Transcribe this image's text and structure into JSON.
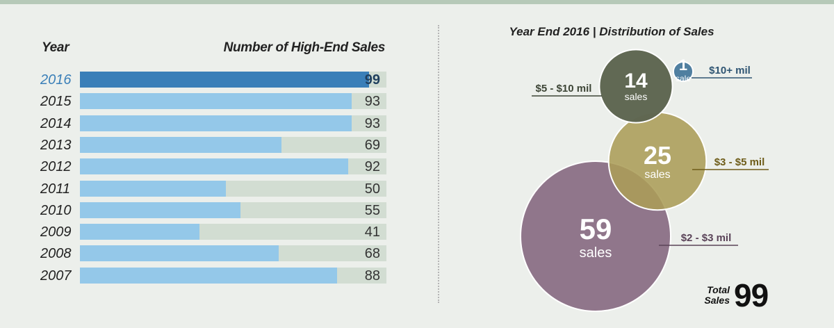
{
  "bar_panel": {
    "year_header": "Year",
    "sales_header": "Number of High-End Sales"
  },
  "bubble_panel": {
    "title": "Year End 2016 | Distribution of Sales",
    "total_label": "Total Sales",
    "total_value": "99"
  },
  "colors": {
    "bar_highlight": "#3a7fb8",
    "bar_default": "#94c8e9",
    "bar_track": "#d2ddd2",
    "bubble_10plus": "#4d7c9e",
    "bubble_5_10": "#5e6651",
    "bubble_3_5": "#ab9d58",
    "bubble_2_3": "#8e7389"
  },
  "chart_data": [
    {
      "type": "bar",
      "orientation": "horizontal",
      "xlabel": "Number of High-End Sales",
      "ylabel": "Year",
      "xlim": [
        0,
        105
      ],
      "categories": [
        "2016",
        "2015",
        "2014",
        "2013",
        "2012",
        "2011",
        "2010",
        "2009",
        "2008",
        "2007"
      ],
      "values": [
        99,
        93,
        93,
        69,
        92,
        50,
        55,
        41,
        68,
        88
      ],
      "highlight": "2016"
    },
    {
      "type": "bubble",
      "title": "Year End 2016 | Distribution of Sales",
      "items": [
        {
          "label": "$10+ mil",
          "value": 1,
          "unit": "sale"
        },
        {
          "label": "$5 - $10 mil",
          "value": 14,
          "unit": "sales"
        },
        {
          "label": "$3 - $5 mil",
          "value": 25,
          "unit": "sales"
        },
        {
          "label": "$2 - $3 mil",
          "value": 59,
          "unit": "sales"
        }
      ],
      "total": 99
    }
  ]
}
